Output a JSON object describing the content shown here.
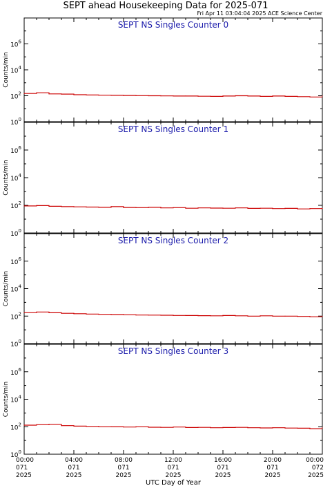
{
  "page": {
    "title": "SEPT ahead Housekeeping Data for 2025-071",
    "timestamp": "Fri Apr 11 03:04:04 2025 ACE Science Center"
  },
  "colors": {
    "trace": "#cc0000",
    "panel_title": "#1a1aaa",
    "axis": "#000000"
  },
  "chart_data": [
    {
      "type": "line",
      "title": "SEPT NS Singles Counter 0",
      "ylabel": "Counts/min",
      "xlabel": "UTC Day of Year",
      "yscale": "log",
      "ylim": [
        1,
        100000000
      ],
      "xlim": [
        0,
        24
      ],
      "x": [
        0,
        1,
        2,
        3,
        4,
        5,
        6,
        7,
        8,
        9,
        10,
        11,
        12,
        13,
        14,
        15,
        16,
        17,
        18,
        19,
        20,
        21,
        22,
        23,
        24
      ],
      "series": [
        {
          "values": [
            150,
            170,
            140,
            135,
            120,
            115,
            110,
            108,
            105,
            102,
            100,
            98,
            95,
            95,
            92,
            90,
            95,
            100,
            95,
            90,
            95,
            90,
            85,
            80,
            95
          ]
        }
      ]
    },
    {
      "type": "line",
      "title": "SEPT NS Singles Counter 1",
      "ylabel": "Counts/min",
      "xlabel": "UTC Day of Year",
      "yscale": "log",
      "ylim": [
        1,
        100000000
      ],
      "xlim": [
        0,
        24
      ],
      "x": [
        0,
        1,
        2,
        3,
        4,
        5,
        6,
        7,
        8,
        9,
        10,
        11,
        12,
        13,
        14,
        15,
        16,
        17,
        18,
        19,
        20,
        21,
        22,
        23,
        24
      ],
      "series": [
        {
          "values": [
            90,
            95,
            85,
            80,
            78,
            75,
            72,
            80,
            70,
            68,
            72,
            65,
            68,
            62,
            65,
            63,
            62,
            65,
            60,
            62,
            58,
            60,
            55,
            58,
            60
          ]
        }
      ]
    },
    {
      "type": "line",
      "title": "SEPT NS Singles Counter 2",
      "ylabel": "Counts/min",
      "xlabel": "UTC Day of Year",
      "yscale": "log",
      "ylim": [
        1,
        100000000
      ],
      "xlim": [
        0,
        24
      ],
      "x": [
        0,
        1,
        2,
        3,
        4,
        5,
        6,
        7,
        8,
        9,
        10,
        11,
        12,
        13,
        14,
        15,
        16,
        17,
        18,
        19,
        20,
        21,
        22,
        23,
        24
      ],
      "series": [
        {
          "values": [
            180,
            200,
            175,
            160,
            150,
            140,
            135,
            130,
            125,
            120,
            118,
            115,
            112,
            110,
            108,
            105,
            110,
            105,
            100,
            105,
            100,
            100,
            95,
            90,
            100
          ]
        }
      ]
    },
    {
      "type": "line",
      "title": "SEPT NS Singles Counter 3",
      "ylabel": "Counts/min",
      "xlabel": "UTC Day of Year",
      "yscale": "log",
      "ylim": [
        1,
        100000000
      ],
      "xlim": [
        0,
        24
      ],
      "x": [
        0,
        1,
        2,
        3,
        4,
        5,
        6,
        7,
        8,
        9,
        10,
        11,
        12,
        13,
        14,
        15,
        16,
        17,
        18,
        19,
        20,
        21,
        22,
        23,
        24
      ],
      "series": [
        {
          "values": [
            130,
            140,
            150,
            120,
            110,
            105,
            100,
            98,
            95,
            100,
            92,
            90,
            95,
            88,
            90,
            85,
            88,
            90,
            85,
            82,
            85,
            80,
            78,
            72,
            85
          ]
        }
      ]
    }
  ],
  "axes": {
    "y_ticks": [
      {
        "value": 1,
        "base": "10",
        "exp": "0"
      },
      {
        "value": 100,
        "base": "10",
        "exp": "2"
      },
      {
        "value": 10000,
        "base": "10",
        "exp": "4"
      },
      {
        "value": 1000000,
        "base": "10",
        "exp": "6"
      }
    ],
    "x_ticks": [
      {
        "hour": 0,
        "time": "00:00",
        "doy": "071",
        "year": "2025"
      },
      {
        "hour": 4,
        "time": "04:00",
        "doy": "071",
        "year": "2025"
      },
      {
        "hour": 8,
        "time": "08:00",
        "doy": "071",
        "year": "2025"
      },
      {
        "hour": 12,
        "time": "12:00",
        "doy": "071",
        "year": "2025"
      },
      {
        "hour": 16,
        "time": "16:00",
        "doy": "071",
        "year": "2025"
      },
      {
        "hour": 20,
        "time": "20:00",
        "doy": "071",
        "year": "2025"
      },
      {
        "hour": 24,
        "time": "00:00",
        "doy": "072",
        "year": "2025"
      }
    ],
    "x_minor_step_hours": 1,
    "xlabel": "UTC Day of Year"
  }
}
